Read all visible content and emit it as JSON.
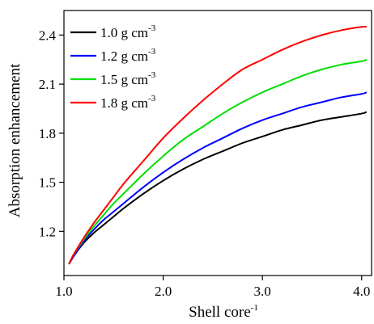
{
  "chart_data": {
    "type": "line",
    "title": "",
    "xlabel": "Shell core",
    "xlabel_superscript": "-1",
    "ylabel": "Absorption enhancement",
    "xlim": [
      1.0,
      4.1
    ],
    "ylim": [
      0.93,
      2.55
    ],
    "x_ticks": [
      1.0,
      2.0,
      3.0,
      4.0
    ],
    "x_tick_labels": [
      "1.0",
      "2.0",
      "3.0",
      "4.0"
    ],
    "y_ticks": [
      1.2,
      1.5,
      1.8,
      2.1,
      2.4
    ],
    "y_tick_labels": [
      "1.2",
      "1.5",
      "1.8",
      "2.1",
      "2.4"
    ],
    "grid": false,
    "legend_position": "top-left",
    "x": [
      1.05,
      1.1,
      1.2,
      1.3,
      1.4,
      1.5,
      1.6,
      1.8,
      2.0,
      2.2,
      2.4,
      2.6,
      2.8,
      3.0,
      3.2,
      3.4,
      3.6,
      3.8,
      4.0,
      4.05
    ],
    "series": [
      {
        "name": "1.0 g cm",
        "name_superscript": "-3",
        "color": "#000000",
        "values": [
          1.0,
          1.05,
          1.13,
          1.19,
          1.24,
          1.29,
          1.34,
          1.43,
          1.51,
          1.58,
          1.64,
          1.69,
          1.74,
          1.78,
          1.82,
          1.85,
          1.88,
          1.9,
          1.92,
          1.93
        ]
      },
      {
        "name": "1.2 g cm",
        "name_superscript": "-3",
        "color": "#0000ff",
        "values": [
          1.0,
          1.05,
          1.14,
          1.21,
          1.27,
          1.32,
          1.37,
          1.47,
          1.56,
          1.64,
          1.71,
          1.77,
          1.83,
          1.88,
          1.92,
          1.96,
          1.99,
          2.02,
          2.04,
          2.05
        ]
      },
      {
        "name": "1.5 g cm",
        "name_superscript": "-3",
        "color": "#00e000",
        "values": [
          1.0,
          1.06,
          1.15,
          1.23,
          1.3,
          1.37,
          1.43,
          1.55,
          1.66,
          1.76,
          1.84,
          1.92,
          1.99,
          2.05,
          2.1,
          2.15,
          2.19,
          2.22,
          2.24,
          2.25
        ]
      },
      {
        "name": "1.8 g cm",
        "name_superscript": "-3",
        "color": "#ff0000",
        "values": [
          1.0,
          1.06,
          1.16,
          1.25,
          1.33,
          1.41,
          1.49,
          1.63,
          1.77,
          1.89,
          2.0,
          2.1,
          2.19,
          2.25,
          2.31,
          2.36,
          2.4,
          2.43,
          2.45,
          2.45
        ]
      }
    ]
  }
}
